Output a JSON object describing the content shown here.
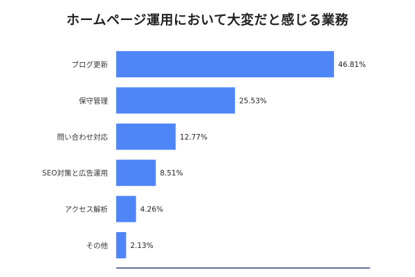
{
  "chart_data": {
    "type": "bar",
    "orientation": "horizontal",
    "title": "ホームページ運用において大変だと感じる業務",
    "categories": [
      "ブログ更新",
      "保守管理",
      "問い合わせ対応",
      "SEO対策と広告運用",
      "アクセス解析",
      "その他"
    ],
    "values": [
      46.81,
      25.53,
      12.77,
      8.51,
      4.26,
      2.13
    ],
    "value_labels": [
      "46.81%",
      "25.53%",
      "12.77%",
      "8.51%",
      "4.26%",
      "2.13%"
    ],
    "xlim": [
      0,
      55
    ],
    "grid": false,
    "legend": "none",
    "bar_color": "#4f86f7",
    "axis_color": "#2c3e7a"
  }
}
